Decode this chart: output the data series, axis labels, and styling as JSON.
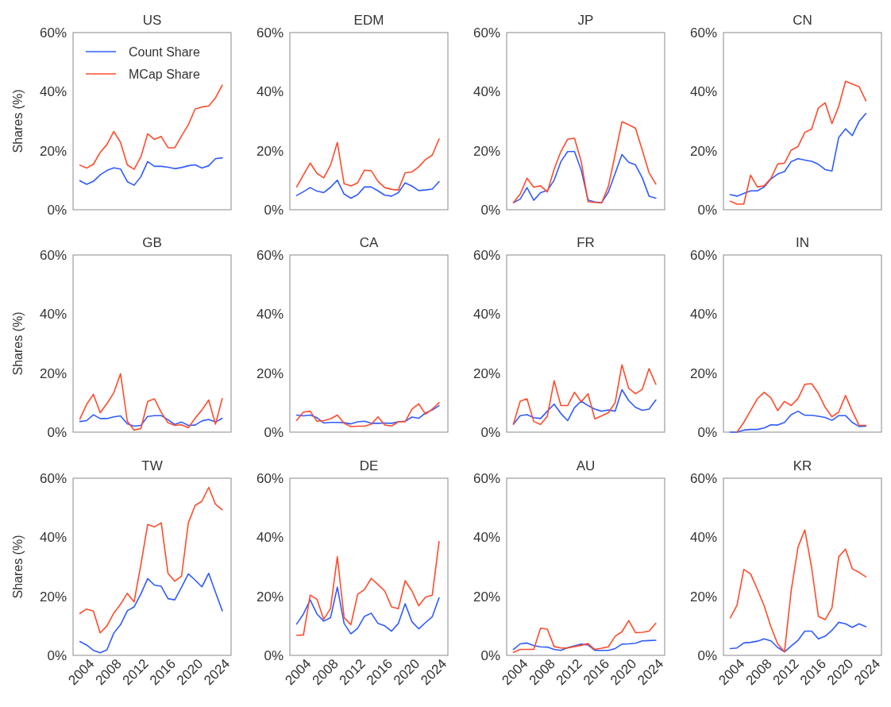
{
  "chart_data": [
    {
      "type": "line",
      "title": "US",
      "ylabel": "Shares (%)",
      "legend": "top left",
      "tick_labels": "y",
      "x": [
        2004,
        2005,
        2006,
        2007,
        2008,
        2009,
        2010,
        2011,
        2012,
        2013,
        2014,
        2015,
        2016,
        2017,
        2018,
        2019,
        2020,
        2021,
        2022,
        2023,
        2024,
        2025
      ],
      "xlim": [
        2003,
        2026.3
      ],
      "ylim": [
        0,
        60
      ],
      "yticks": [
        {
          "value": 0,
          "label": "0%"
        },
        {
          "value": 20,
          "label": "20%"
        },
        {
          "value": 40,
          "label": "40%"
        },
        {
          "value": 60,
          "label": "60%"
        }
      ],
      "series": [
        {
          "name": "Count Share",
          "color": "#2f5bff",
          "values": [
            9.8,
            8.6,
            9.6,
            11.8,
            13.3,
            14.2,
            13.8,
            9.5,
            8.3,
            11.2,
            16.3,
            14.7,
            14.7,
            14.4,
            13.9,
            14.3,
            14.9,
            15.2,
            14.1,
            14.9,
            17.3,
            17.6
          ]
        },
        {
          "name": "MCap Share",
          "color": "#ff4b2b",
          "values": [
            15.1,
            14.1,
            15.4,
            19.4,
            22.1,
            26.5,
            22.8,
            15.2,
            13.7,
            17.9,
            25.7,
            23.8,
            24.8,
            21.0,
            21.0,
            25.0,
            28.8,
            34.1,
            34.8,
            35.1,
            37.9,
            42.2
          ]
        }
      ]
    },
    {
      "type": "line",
      "title": "EDM",
      "tick_labels": "y",
      "x": [
        2004,
        2005,
        2006,
        2007,
        2008,
        2009,
        2010,
        2011,
        2012,
        2013,
        2014,
        2015,
        2016,
        2017,
        2018,
        2019,
        2020,
        2021,
        2022,
        2023,
        2024,
        2025
      ],
      "xlim": [
        2003,
        2026.3
      ],
      "ylim": [
        0,
        60
      ],
      "yticks": [
        {
          "value": 0,
          "label": "0%"
        },
        {
          "value": 20,
          "label": "20%"
        },
        {
          "value": 40,
          "label": "40%"
        },
        {
          "value": 60,
          "label": "60%"
        }
      ],
      "series": [
        {
          "color": "#2f5bff",
          "values": [
            4.8,
            6.1,
            7.5,
            6.3,
            5.8,
            7.6,
            10.0,
            5.3,
            3.9,
            5.1,
            7.7,
            7.7,
            6.4,
            4.9,
            4.6,
            5.8,
            9.1,
            8.0,
            6.5,
            6.7,
            7.0,
            9.5
          ]
        },
        {
          "color": "#ff4b2b",
          "values": [
            7.7,
            11.8,
            15.8,
            12.3,
            10.8,
            15.1,
            22.8,
            8.8,
            8.1,
            9.1,
            13.4,
            13.2,
            9.6,
            7.5,
            6.9,
            6.7,
            12.5,
            12.8,
            14.5,
            17.0,
            18.5,
            24.0
          ]
        }
      ]
    },
    {
      "type": "line",
      "title": "JP",
      "tick_labels": "y",
      "x": [
        2004,
        2005,
        2006,
        2007,
        2008,
        2009,
        2010,
        2011,
        2012,
        2013,
        2014,
        2015,
        2016,
        2017,
        2018,
        2019,
        2020,
        2021,
        2022,
        2023,
        2024,
        2025
      ],
      "xlim": [
        2003,
        2026.3
      ],
      "ylim": [
        0,
        60
      ],
      "yticks": [
        {
          "value": 0,
          "label": "0%"
        },
        {
          "value": 20,
          "label": "20%"
        },
        {
          "value": 40,
          "label": "40%"
        },
        {
          "value": 60,
          "label": "60%"
        }
      ],
      "series": [
        {
          "color": "#2f5bff",
          "values": [
            2.4,
            3.6,
            7.5,
            3.2,
            5.8,
            6.5,
            10.0,
            16.3,
            19.7,
            19.7,
            13.4,
            3.3,
            2.6,
            2.4,
            6.0,
            12.3,
            18.7,
            16.1,
            15.2,
            10.8,
            4.6,
            3.9
          ]
        },
        {
          "color": "#ff4b2b",
          "values": [
            2.4,
            5.3,
            10.7,
            7.6,
            8.1,
            6.0,
            13.7,
            19.7,
            23.9,
            24.2,
            16.3,
            2.7,
            2.5,
            2.3,
            7.9,
            18.7,
            29.8,
            28.8,
            27.6,
            20.2,
            12.5,
            8.7
          ]
        }
      ]
    },
    {
      "type": "line",
      "title": "CN",
      "tick_labels": "y",
      "x": [
        2004,
        2005,
        2006,
        2007,
        2008,
        2009,
        2010,
        2011,
        2012,
        2013,
        2014,
        2015,
        2016,
        2017,
        2018,
        2019,
        2020,
        2021,
        2022,
        2023,
        2024
      ],
      "xlim": [
        2003,
        2026.3
      ],
      "ylim": [
        0,
        60
      ],
      "yticks": [
        {
          "value": 0,
          "label": "0%"
        },
        {
          "value": 20,
          "label": "20%"
        },
        {
          "value": 40,
          "label": "40%"
        },
        {
          "value": 60,
          "label": "60%"
        }
      ],
      "series": [
        {
          "color": "#2f5bff",
          "values": [
            5.1,
            4.6,
            5.5,
            6.4,
            6.4,
            7.7,
            10.4,
            12.1,
            12.9,
            16.3,
            17.3,
            16.8,
            16.4,
            15.4,
            13.6,
            13.1,
            24.5,
            27.4,
            25.1,
            29.9,
            32.6
          ]
        },
        {
          "color": "#ff4b2b",
          "values": [
            2.9,
            1.9,
            1.9,
            11.7,
            7.7,
            8.1,
            10.6,
            15.5,
            15.8,
            20.2,
            21.4,
            26.2,
            27.3,
            34.5,
            36.2,
            29.2,
            35.0,
            43.5,
            42.6,
            41.7,
            36.9
          ]
        }
      ]
    },
    {
      "type": "line",
      "title": "GB",
      "ylabel": "Shares (%)",
      "tick_labels": "y",
      "x": [
        2004,
        2005,
        2006,
        2007,
        2008,
        2009,
        2010,
        2011,
        2012,
        2013,
        2014,
        2015,
        2016,
        2017,
        2018,
        2019,
        2020,
        2021,
        2022,
        2023,
        2024,
        2025
      ],
      "xlim": [
        2003,
        2026.3
      ],
      "ylim": [
        0,
        60
      ],
      "yticks": [
        {
          "value": 0,
          "label": "0%"
        },
        {
          "value": 20,
          "label": "20%"
        },
        {
          "value": 40,
          "label": "40%"
        },
        {
          "value": 60,
          "label": "60%"
        }
      ],
      "series": [
        {
          "color": "#2f5bff",
          "values": [
            3.6,
            3.9,
            5.9,
            4.6,
            4.6,
            5.2,
            5.5,
            2.8,
            2.0,
            2.3,
            5.3,
            5.6,
            5.6,
            4.2,
            2.6,
            3.4,
            2.3,
            2.4,
            3.8,
            4.3,
            3.4,
            4.7
          ]
        },
        {
          "color": "#ff4b2b",
          "values": [
            4.4,
            9.4,
            12.8,
            6.6,
            9.7,
            13.3,
            19.8,
            3.7,
            0.7,
            1.2,
            10.4,
            11.3,
            6.7,
            3.2,
            2.3,
            2.5,
            1.5,
            4.7,
            7.5,
            10.9,
            2.7,
            11.4
          ]
        }
      ]
    },
    {
      "type": "line",
      "title": "CA",
      "tick_labels": "y",
      "x": [
        2004,
        2005,
        2006,
        2007,
        2008,
        2009,
        2010,
        2011,
        2012,
        2013,
        2014,
        2015,
        2016,
        2017,
        2018,
        2019,
        2020,
        2021,
        2022,
        2023,
        2024,
        2025
      ],
      "xlim": [
        2003,
        2026.3
      ],
      "ylim": [
        0,
        60
      ],
      "yticks": [
        {
          "value": 0,
          "label": "0%"
        },
        {
          "value": 20,
          "label": "20%"
        },
        {
          "value": 40,
          "label": "40%"
        },
        {
          "value": 60,
          "label": "60%"
        }
      ],
      "series": [
        {
          "color": "#2f5bff",
          "values": [
            5.8,
            5.5,
            5.8,
            4.9,
            3.1,
            3.3,
            3.3,
            3.2,
            2.8,
            3.5,
            3.7,
            3.0,
            3.0,
            3.1,
            3.0,
            3.5,
            3.7,
            5.1,
            4.7,
            6.5,
            7.5,
            9.0
          ]
        },
        {
          "color": "#ff4b2b",
          "values": [
            4.0,
            6.8,
            7.1,
            3.7,
            3.9,
            4.5,
            5.8,
            3.0,
            1.9,
            2.0,
            2.0,
            2.7,
            5.2,
            2.4,
            2.1,
            3.5,
            3.5,
            7.8,
            9.6,
            6.1,
            7.8,
            10.0
          ]
        }
      ]
    },
    {
      "type": "line",
      "title": "FR",
      "tick_labels": "y",
      "x": [
        2004,
        2005,
        2006,
        2007,
        2008,
        2009,
        2010,
        2011,
        2012,
        2013,
        2014,
        2015,
        2016,
        2017,
        2018,
        2019,
        2020,
        2021,
        2022,
        2023,
        2024,
        2025
      ],
      "xlim": [
        2003,
        2026.3
      ],
      "ylim": [
        0,
        60
      ],
      "yticks": [
        {
          "value": 0,
          "label": "0%"
        },
        {
          "value": 20,
          "label": "20%"
        },
        {
          "value": 40,
          "label": "40%"
        },
        {
          "value": 60,
          "label": "60%"
        }
      ],
      "series": [
        {
          "color": "#2f5bff",
          "values": [
            2.7,
            5.6,
            5.9,
            4.9,
            4.6,
            7.1,
            9.5,
            6.3,
            3.9,
            8.3,
            10.5,
            9.0,
            7.8,
            7.1,
            7.5,
            7.1,
            14.4,
            10.7,
            8.4,
            7.4,
            7.8,
            10.9
          ]
        },
        {
          "color": "#ff4b2b",
          "values": [
            2.7,
            10.5,
            11.3,
            3.6,
            2.6,
            5.4,
            17.4,
            9.0,
            9.0,
            13.5,
            10.3,
            13.0,
            4.5,
            5.5,
            6.6,
            10.0,
            22.8,
            14.8,
            13.0,
            14.5,
            21.5,
            16.2
          ]
        }
      ]
    },
    {
      "type": "line",
      "title": "IN",
      "tick_labels": "y",
      "x": [
        2004,
        2005,
        2006,
        2007,
        2008,
        2009,
        2010,
        2011,
        2012,
        2013,
        2014,
        2015,
        2016,
        2017,
        2018,
        2019,
        2020,
        2021,
        2022,
        2023,
        2024
      ],
      "xlim": [
        2003,
        2026.3
      ],
      "ylim": [
        0,
        60
      ],
      "yticks": [
        {
          "value": 0,
          "label": "0%"
        },
        {
          "value": 20,
          "label": "20%"
        },
        {
          "value": 40,
          "label": "40%"
        },
        {
          "value": 60,
          "label": "60%"
        }
      ],
      "series": [
        {
          "color": "#2f5bff",
          "values": [
            0,
            0,
            0.7,
            0.9,
            0.9,
            1.4,
            2.5,
            2.4,
            3.3,
            5.9,
            7.1,
            5.7,
            5.7,
            5.4,
            5.0,
            4.0,
            5.6,
            5.6,
            3.3,
            1.9,
            2.0
          ]
        },
        {
          "color": "#ff4b2b",
          "values": [
            null,
            0,
            3.3,
            7.3,
            11.3,
            13.5,
            11.6,
            7.3,
            10.4,
            9.0,
            11.4,
            16.2,
            16.4,
            13.1,
            8.4,
            5.2,
            6.8,
            12.4,
            7.1,
            2.3,
            2.3
          ]
        }
      ]
    },
    {
      "type": "line",
      "title": "TW",
      "ylabel": "Shares (%)",
      "x": [
        2004,
        2005,
        2006,
        2007,
        2008,
        2009,
        2010,
        2011,
        2012,
        2013,
        2014,
        2015,
        2016,
        2017,
        2018,
        2019,
        2020,
        2021,
        2022,
        2023,
        2024,
        2025
      ],
      "xlim": [
        2003,
        2026.3
      ],
      "ylim": [
        0,
        60
      ],
      "xticks": [
        2004,
        2008,
        2012,
        2016,
        2020,
        2024
      ],
      "yticks": [
        {
          "value": 0,
          "label": "0%"
        },
        {
          "value": 20,
          "label": "20%"
        },
        {
          "value": 40,
          "label": "40%"
        },
        {
          "value": 60,
          "label": "60%"
        }
      ],
      "series": [
        {
          "color": "#2f5bff",
          "values": [
            4.7,
            3.5,
            1.7,
            0.9,
            1.9,
            7.5,
            10.4,
            15.1,
            16.4,
            20.8,
            26.0,
            23.8,
            23.4,
            19.2,
            18.8,
            23.1,
            27.6,
            25.5,
            23.2,
            27.8,
            21.4,
            15.1
          ]
        },
        {
          "color": "#ff4b2b",
          "values": [
            14.2,
            15.7,
            15.0,
            7.6,
            10.0,
            14.3,
            17.3,
            21.0,
            18.1,
            30.7,
            44.3,
            43.5,
            44.9,
            27.8,
            25.1,
            26.9,
            44.9,
            50.8,
            52.2,
            56.9,
            51.2,
            49.3
          ]
        }
      ]
    },
    {
      "type": "line",
      "title": "DE",
      "x": [
        2004,
        2005,
        2006,
        2007,
        2008,
        2009,
        2010,
        2011,
        2012,
        2013,
        2014,
        2015,
        2016,
        2017,
        2018,
        2019,
        2020,
        2021,
        2022,
        2023,
        2024,
        2025
      ],
      "xlim": [
        2003,
        2026.3
      ],
      "ylim": [
        0,
        60
      ],
      "xticks": [
        2004,
        2008,
        2012,
        2016,
        2020,
        2024
      ],
      "yticks": [
        {
          "value": 0,
          "label": "0%"
        },
        {
          "value": 20,
          "label": "20%"
        },
        {
          "value": 40,
          "label": "40%"
        },
        {
          "value": 60,
          "label": "60%"
        }
      ],
      "series": [
        {
          "color": "#2f5bff",
          "values": [
            10.6,
            14.0,
            18.8,
            14.0,
            11.6,
            12.8,
            23.1,
            10.8,
            7.3,
            9.2,
            13.2,
            14.3,
            10.8,
            10.0,
            8.2,
            10.8,
            17.5,
            11.4,
            9.0,
            11.1,
            13.1,
            19.5
          ]
        },
        {
          "color": "#ff4b2b",
          "values": [
            6.8,
            6.9,
            20.4,
            19.0,
            12.2,
            15.9,
            33.4,
            12.8,
            10.4,
            20.7,
            22.3,
            26.1,
            24.0,
            21.8,
            16.4,
            15.8,
            25.3,
            21.8,
            16.8,
            19.7,
            20.4,
            38.5
          ]
        }
      ]
    },
    {
      "type": "line",
      "title": "AU",
      "x": [
        2004,
        2005,
        2006,
        2007,
        2008,
        2009,
        2010,
        2011,
        2012,
        2013,
        2014,
        2015,
        2016,
        2017,
        2018,
        2019,
        2020,
        2021,
        2022,
        2023,
        2024,
        2025
      ],
      "xlim": [
        2003,
        2026.3
      ],
      "ylim": [
        0,
        60
      ],
      "xticks": [
        2004,
        2008,
        2012,
        2016,
        2020,
        2024
      ],
      "yticks": [
        {
          "value": 0,
          "label": "0%"
        },
        {
          "value": 20,
          "label": "20%"
        },
        {
          "value": 40,
          "label": "40%"
        },
        {
          "value": 60,
          "label": "60%"
        }
      ],
      "series": [
        {
          "color": "#2f5bff",
          "values": [
            2.0,
            3.9,
            4.2,
            3.3,
            2.9,
            2.8,
            2.0,
            1.7,
            2.6,
            3.2,
            3.8,
            3.5,
            1.7,
            1.7,
            1.7,
            2.3,
            3.8,
            3.9,
            4.1,
            4.9,
            5.0,
            5.1
          ]
        },
        {
          "color": "#ff4b2b",
          "values": [
            1.0,
            2.0,
            2.0,
            2.0,
            9.2,
            8.9,
            3.0,
            2.5,
            2.5,
            3.0,
            3.4,
            4.0,
            2.0,
            2.4,
            2.9,
            6.5,
            8.0,
            11.8,
            7.7,
            7.8,
            8.2,
            10.9
          ]
        }
      ]
    },
    {
      "type": "line",
      "title": "KR",
      "x": [
        2004,
        2005,
        2006,
        2007,
        2008,
        2009,
        2010,
        2011,
        2012,
        2013,
        2014,
        2015,
        2016,
        2017,
        2018,
        2019,
        2020,
        2021,
        2022,
        2023,
        2024
      ],
      "xlim": [
        2003,
        2026.3
      ],
      "ylim": [
        0,
        60
      ],
      "xticks": [
        2004,
        2008,
        2012,
        2016,
        2020,
        2024
      ],
      "yticks": [
        {
          "value": 0,
          "label": "0%"
        },
        {
          "value": 20,
          "label": "20%"
        },
        {
          "value": 40,
          "label": "40%"
        },
        {
          "value": 60,
          "label": "60%"
        }
      ],
      "series": [
        {
          "color": "#2f5bff",
          "values": [
            2.3,
            2.5,
            4.2,
            4.4,
            4.8,
            5.6,
            4.9,
            2.7,
            1.2,
            3.2,
            5.1,
            8.2,
            8.2,
            5.6,
            6.5,
            8.5,
            11.2,
            10.7,
            9.5,
            10.7,
            9.7
          ]
        },
        {
          "color": "#ff4b2b",
          "values": [
            12.7,
            17.0,
            29.1,
            27.6,
            22.4,
            16.8,
            9.7,
            3.9,
            1.2,
            22.1,
            36.7,
            42.5,
            29.8,
            13.2,
            12.1,
            16.1,
            33.4,
            36.0,
            29.3,
            28.1,
            26.6
          ]
        }
      ]
    }
  ]
}
